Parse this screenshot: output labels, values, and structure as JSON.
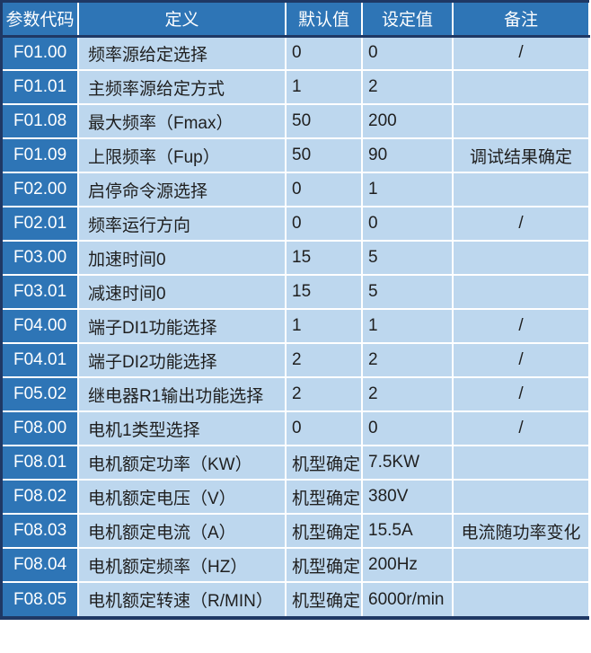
{
  "table": {
    "columns": [
      "参数代码",
      "定义",
      "默认值",
      "设定值",
      "备注"
    ],
    "rows": [
      {
        "code": "F01.00",
        "definition": "频率源给定选择",
        "default_value": "0",
        "set_value": "0",
        "remark": "/"
      },
      {
        "code": "F01.01",
        "definition": "主频率源给定方式",
        "default_value": "1",
        "set_value": "2",
        "remark": ""
      },
      {
        "code": "F01.08",
        "definition": "最大频率（Fmax）",
        "default_value": "50",
        "set_value": "200",
        "remark": ""
      },
      {
        "code": "F01.09",
        "definition": "上限频率（Fup）",
        "default_value": "50",
        "set_value": "90",
        "remark": "调试结果确定"
      },
      {
        "code": "F02.00",
        "definition": "启停命令源选择",
        "default_value": "0",
        "set_value": "1",
        "remark": ""
      },
      {
        "code": "F02.01",
        "definition": "频率运行方向",
        "default_value": "0",
        "set_value": "0",
        "remark": "/"
      },
      {
        "code": "F03.00",
        "definition": "加速时间0",
        "default_value": "15",
        "set_value": "5",
        "remark": ""
      },
      {
        "code": "F03.01",
        "definition": "减速时间0",
        "default_value": "15",
        "set_value": "5",
        "remark": ""
      },
      {
        "code": "F04.00",
        "definition": "端子DI1功能选择",
        "default_value": "1",
        "set_value": "1",
        "remark": "/"
      },
      {
        "code": "F04.01",
        "definition": "端子DI2功能选择",
        "default_value": "2",
        "set_value": "2",
        "remark": "/"
      },
      {
        "code": "F05.02",
        "definition": "继电器R1输出功能选择",
        "default_value": "2",
        "set_value": "2",
        "remark": "/"
      },
      {
        "code": "F08.00",
        "definition": "电机1类型选择",
        "default_value": "0",
        "set_value": "0",
        "remark": "/"
      },
      {
        "code": "F08.01",
        "definition": "电机额定功率（KW）",
        "default_value": "机型确定",
        "set_value": "7.5KW",
        "remark": ""
      },
      {
        "code": "F08.02",
        "definition": "电机额定电压（V）",
        "default_value": "机型确定",
        "set_value": "380V",
        "remark": ""
      },
      {
        "code": "F08.03",
        "definition": "电机额定电流（A）",
        "default_value": "机型确定",
        "set_value": "15.5A",
        "remark": "电流随功率变化"
      },
      {
        "code": "F08.04",
        "definition": "电机额定频率（HZ）",
        "default_value": "机型确定",
        "set_value": "200Hz",
        "remark": ""
      },
      {
        "code": "F08.05",
        "definition": "电机额定转速（R/MIN）",
        "default_value": "机型确定",
        "set_value": "6000r/min",
        "remark": ""
      }
    ]
  },
  "colors": {
    "header_bg": "#2E75B6",
    "cell_bg": "#BDD7EE",
    "border_dark": "#1F3864",
    "gridline": "#FFFFFF",
    "header_text": "#FFFFFF",
    "cell_text": "#1F1F1F"
  }
}
